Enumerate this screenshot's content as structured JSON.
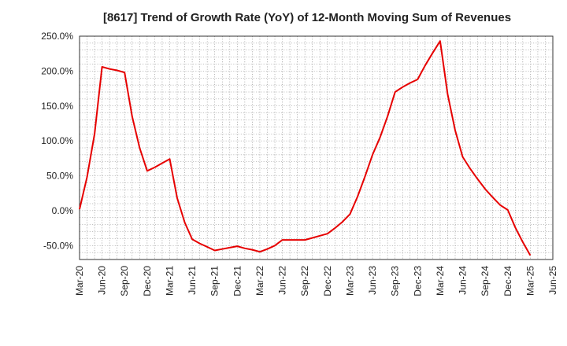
{
  "chart_data": {
    "type": "line",
    "title": "[8617]  Trend of Growth Rate (YoY) of 12-Month Moving Sum of Revenues",
    "xlabel": "",
    "ylabel": "",
    "ylim": [
      -70,
      250
    ],
    "y_ticks": [
      250,
      200,
      150,
      100,
      50,
      0,
      -50
    ],
    "y_tick_labels": [
      "250.0%",
      "200.0%",
      "150.0%",
      "100.0%",
      "50.0%",
      "0.0%",
      "-50.0%"
    ],
    "x_ticks": [
      "Mar-20",
      "Jun-20",
      "Sep-20",
      "Dec-20",
      "Mar-21",
      "Jun-21",
      "Sep-21",
      "Dec-21",
      "Mar-22",
      "Jun-22",
      "Sep-22",
      "Dec-22",
      "Mar-23",
      "Jun-23",
      "Sep-23",
      "Dec-23",
      "Mar-24",
      "Jun-24",
      "Sep-24",
      "Dec-24",
      "Mar-25",
      "Jun-25"
    ],
    "grid": true,
    "line_color": "#e60000",
    "series": [
      {
        "values": [
          [
            0,
            2
          ],
          [
            1,
            48
          ],
          [
            2,
            110
          ],
          [
            3,
            206
          ],
          [
            4,
            203
          ],
          [
            5,
            201
          ],
          [
            6,
            198
          ],
          [
            7,
            135
          ],
          [
            8,
            90
          ],
          [
            9,
            57
          ],
          [
            10,
            62
          ],
          [
            11,
            68
          ],
          [
            12,
            74
          ],
          [
            13,
            18
          ],
          [
            14,
            -17
          ],
          [
            15,
            -41
          ],
          [
            16,
            -47
          ],
          [
            17,
            -52
          ],
          [
            18,
            -57
          ],
          [
            19,
            -55
          ],
          [
            20,
            -53
          ],
          [
            21,
            -51
          ],
          [
            22,
            -54
          ],
          [
            23,
            -56
          ],
          [
            24,
            -59
          ],
          [
            25,
            -55
          ],
          [
            26,
            -50
          ],
          [
            27,
            -42
          ],
          [
            28,
            -42
          ],
          [
            29,
            -42
          ],
          [
            30,
            -42
          ],
          [
            31,
            -39
          ],
          [
            32,
            -36
          ],
          [
            33,
            -33
          ],
          [
            34,
            -25
          ],
          [
            35,
            -16
          ],
          [
            36,
            -5
          ],
          [
            37,
            20
          ],
          [
            38,
            49
          ],
          [
            39,
            80
          ],
          [
            40,
            105
          ],
          [
            41,
            135
          ],
          [
            42,
            170
          ],
          [
            43,
            177
          ],
          [
            44,
            183
          ],
          [
            45,
            188
          ],
          [
            46,
            208
          ],
          [
            47,
            226
          ],
          [
            48,
            243
          ],
          [
            49,
            167
          ],
          [
            50,
            115
          ],
          [
            51,
            77
          ],
          [
            52,
            60
          ],
          [
            53,
            45
          ],
          [
            54,
            31
          ],
          [
            55,
            19
          ],
          [
            56,
            8
          ],
          [
            57,
            1
          ],
          [
            58,
            -24
          ],
          [
            59,
            -45
          ],
          [
            60,
            -64
          ]
        ]
      }
    ]
  }
}
